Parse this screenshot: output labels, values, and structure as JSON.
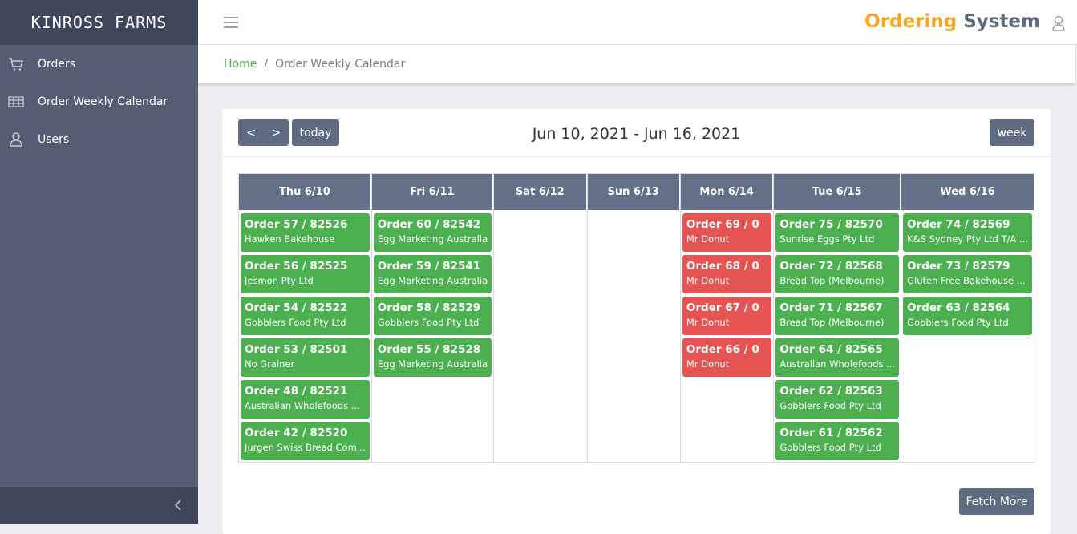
{
  "sidebar": {
    "logo": "KINROSS FARMS",
    "menu": [
      "Orders",
      "Order Weekly Calendar",
      "Users"
    ]
  },
  "header": {
    "title_first": "Ordering",
    "title_second": "System"
  },
  "breadcrumb": {
    "home": "Home",
    "separator": "/",
    "current": "Order Weekly Calendar"
  },
  "toolbar": {
    "prev": "<",
    "next": ">",
    "today": "today",
    "range": "Jun 10, 2021 - Jun 16, 2021",
    "view": "week"
  },
  "calendar": {
    "days": [
      {
        "label": "Thu 6/10",
        "events": [
          {
            "title": "Order 57 / 82526",
            "customer": "Hawken Bakehouse",
            "color": "#4caf50"
          },
          {
            "title": "Order 56 / 82525",
            "customer": "Jesmon Pty Ltd",
            "color": "#4caf50"
          },
          {
            "title": "Order 54 / 82522",
            "customer": "Gobblers Food Pty Ltd",
            "color": "#4caf50"
          },
          {
            "title": "Order 53 / 82501",
            "customer": "No Grainer",
            "color": "#4caf50"
          },
          {
            "title": "Order 48 / 82521",
            "customer": "Australian Wholefoods ...",
            "color": "#4caf50"
          },
          {
            "title": "Order 42 / 82520",
            "customer": "Jurgen Swiss Bread Com...",
            "color": "#4caf50"
          }
        ]
      },
      {
        "label": "Fri 6/11",
        "events": [
          {
            "title": "Order 60 / 82542",
            "customer": "Egg Marketing Australia",
            "color": "#4caf50"
          },
          {
            "title": "Order 59 / 82541",
            "customer": "Egg Marketing Australia",
            "color": "#4caf50"
          },
          {
            "title": "Order 58 / 82529",
            "customer": "Gobblers Food Pty Ltd",
            "color": "#4caf50"
          },
          {
            "title": "Order 55 / 82528",
            "customer": "Egg Marketing Australia",
            "color": "#4caf50"
          }
        ]
      },
      {
        "label": "Sat 6/12",
        "events": []
      },
      {
        "label": "Sun 6/13",
        "events": []
      },
      {
        "label": "Mon 6/14",
        "events": [
          {
            "title": "Order 69 / 0",
            "customer": "Mr Donut",
            "color": "#e55353"
          },
          {
            "title": "Order 68 / 0",
            "customer": "Mr Donut",
            "color": "#e55353"
          },
          {
            "title": "Order 67 / 0",
            "customer": "Mr Donut",
            "color": "#e55353"
          },
          {
            "title": "Order 66 / 0",
            "customer": "Mr Donut",
            "color": "#e55353"
          }
        ]
      },
      {
        "label": "Tue 6/15",
        "events": [
          {
            "title": "Order 75 / 82570",
            "customer": "Sunrise Eggs Pty Ltd",
            "color": "#4caf50"
          },
          {
            "title": "Order 72 / 82568",
            "customer": "Bread Top (Melbourne)",
            "color": "#4caf50"
          },
          {
            "title": "Order 71 / 82567",
            "customer": "Bread Top (Melbourne)",
            "color": "#4caf50"
          },
          {
            "title": "Order 64 / 82565",
            "customer": "Australian Wholefoods ...",
            "color": "#4caf50"
          },
          {
            "title": "Order 62 / 82563",
            "customer": "Gobblers Food Pty Ltd",
            "color": "#4caf50"
          },
          {
            "title": "Order 61 / 82562",
            "customer": "Gobblers Food Pty Ltd",
            "color": "#4caf50"
          }
        ]
      },
      {
        "label": "Wed 6/16",
        "events": [
          {
            "title": "Order 74 / 82569",
            "customer": "K&S Sydney Pty Ltd T/A ...",
            "color": "#4caf50"
          },
          {
            "title": "Order 73 / 82579",
            "customer": "Gluten Free Bakehouse ...",
            "color": "#4caf50"
          },
          {
            "title": "Order 63 / 82564",
            "customer": "Gobblers Food Pty Ltd",
            "color": "#4caf50"
          }
        ]
      }
    ]
  },
  "footer": {
    "fetch_more": "Fetch More"
  }
}
